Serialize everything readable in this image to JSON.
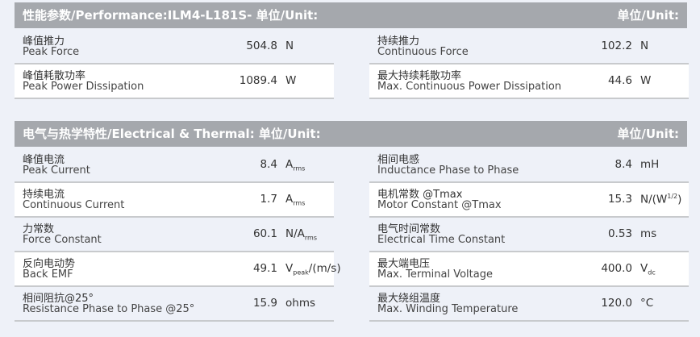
{
  "performance": {
    "title": "性能参数/Performance:ILM4-L181S- 单位/Unit:",
    "unit_label": "单位/Unit:",
    "left": [
      {
        "zh": "峰值推力",
        "en": "Peak Force",
        "value": "504.8",
        "unit": "N"
      },
      {
        "zh": "峰值耗散功率",
        "en": "Peak Power Dissipation",
        "value": "1089.4",
        "unit": "W"
      }
    ],
    "right": [
      {
        "zh": "持续推力",
        "en": "Continuous Force",
        "value": "102.2",
        "unit": "N"
      },
      {
        "zh": "最大持续耗散功率",
        "en": "Max. Continuous Power Dissipation",
        "value": "44.6",
        "unit": "W"
      }
    ]
  },
  "electrical": {
    "title": "电气与热学特性/Electrical & Thermal:   单位/Unit:",
    "unit_label": "单位/Unit:",
    "left": [
      {
        "zh": "峰值电流",
        "en": "Peak Current",
        "value": "8.4",
        "unit": "A",
        "unit_sub": "rms"
      },
      {
        "zh": "持续电流",
        "en": "Continuous Current",
        "value": "1.7",
        "unit": "A",
        "unit_sub": "rms"
      },
      {
        "zh": "力常数",
        "en": "Force Constant",
        "value": "60.1",
        "unit": "N/A",
        "unit_sub": "rms"
      },
      {
        "zh": "反向电动势",
        "en": "Back EMF",
        "value": "49.1",
        "unit": "V",
        "unit_sub": "peak",
        "unit_post": "/(m/s)"
      },
      {
        "zh": "相间阻抗@25°",
        "en": "Resistance Phase to Phase @25°",
        "value": "15.9",
        "unit": "ohms"
      }
    ],
    "right": [
      {
        "zh": "相间电感",
        "en": "Inductance Phase to Phase",
        "value": "8.4",
        "unit": "mH"
      },
      {
        "zh": "电机常数 @Tmax",
        "en": "Motor Constant @Tmax",
        "value": "15.3",
        "unit": "N/(W",
        "unit_sup": "1/2",
        "unit_post": ")"
      },
      {
        "zh": "电气时间常数",
        "en": "Electrical Time Constant",
        "value": "0.53",
        "unit": "ms"
      },
      {
        "zh": "最大端电压",
        "en": "Max. Terminal Voltage",
        "value": "400.0",
        "unit": "V",
        "unit_sub": "dc"
      },
      {
        "zh": "最大绕组温度",
        "en": "Max. Winding Temperature",
        "value": "120.0",
        "unit": "°C"
      }
    ]
  }
}
